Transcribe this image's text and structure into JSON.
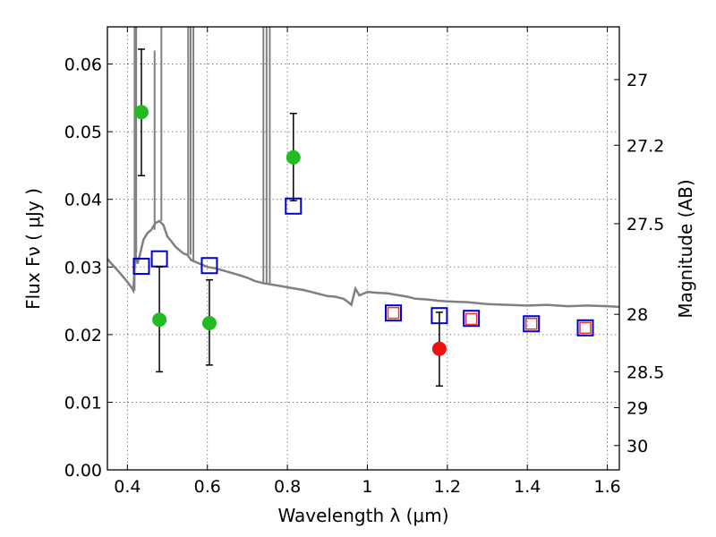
{
  "chart_data": {
    "type": "scatter",
    "title": "",
    "xlabel": "Wavelength  λ (μm)",
    "ylabel": "Flux  Fν  ( μJy )",
    "y2label": "Magnitude (AB)",
    "xlim": [
      0.35,
      1.63
    ],
    "ylim": [
      0.0,
      0.0655
    ],
    "x_ticks": [
      0.4,
      0.6,
      0.8,
      1.0,
      1.2,
      1.4,
      1.6
    ],
    "x_tick_labels": [
      "0.4",
      "0.6",
      "0.8",
      "1",
      "1.2",
      "1.4",
      "1.6"
    ],
    "y_ticks": [
      0.0,
      0.01,
      0.02,
      0.03,
      0.04,
      0.05,
      0.06
    ],
    "y_tick_labels": [
      "0.00",
      "0.01",
      "0.02",
      "0.03",
      "0.04",
      "0.05",
      "0.06"
    ],
    "y2_ticks": [
      {
        "label": "27",
        "flux": 0.0577
      },
      {
        "label": "27.2",
        "flux": 0.048
      },
      {
        "label": "27.5",
        "flux": 0.0364
      },
      {
        "label": "28",
        "flux": 0.023
      },
      {
        "label": "28.5",
        "flux": 0.0145
      },
      {
        "label": "29",
        "flux": 0.0092
      },
      {
        "label": "30",
        "flux": 0.0036
      }
    ],
    "grid": true,
    "series": [
      {
        "marker": "line",
        "color": "#808080",
        "points": [
          [
            0.35,
            0.0312
          ],
          [
            0.36,
            0.0305
          ],
          [
            0.38,
            0.0292
          ],
          [
            0.4,
            0.0278
          ],
          [
            0.41,
            0.027
          ],
          [
            0.415,
            0.0265
          ],
          [
            0.42,
            0.032
          ],
          [
            0.425,
            0.0305
          ],
          [
            0.43,
            0.0315
          ],
          [
            0.44,
            0.034
          ],
          [
            0.45,
            0.035
          ],
          [
            0.46,
            0.0355
          ],
          [
            0.47,
            0.0365
          ],
          [
            0.48,
            0.0368
          ],
          [
            0.49,
            0.0362
          ],
          [
            0.5,
            0.0345
          ],
          [
            0.51,
            0.0338
          ],
          [
            0.52,
            0.033
          ],
          [
            0.53,
            0.0325
          ],
          [
            0.54,
            0.032
          ],
          [
            0.55,
            0.0318
          ],
          [
            0.56,
            0.031
          ],
          [
            0.58,
            0.0305
          ],
          [
            0.6,
            0.03
          ],
          [
            0.62,
            0.0298
          ],
          [
            0.65,
            0.0293
          ],
          [
            0.68,
            0.0288
          ],
          [
            0.7,
            0.0284
          ],
          [
            0.72,
            0.0279
          ],
          [
            0.74,
            0.0276
          ],
          [
            0.76,
            0.0274
          ],
          [
            0.78,
            0.0272
          ],
          [
            0.8,
            0.027
          ],
          [
            0.82,
            0.0268
          ],
          [
            0.84,
            0.0266
          ],
          [
            0.86,
            0.0263
          ],
          [
            0.88,
            0.026
          ],
          [
            0.9,
            0.0257
          ],
          [
            0.92,
            0.0256
          ],
          [
            0.94,
            0.0253
          ],
          [
            0.95,
            0.0249
          ],
          [
            0.96,
            0.0244
          ],
          [
            0.97,
            0.0268
          ],
          [
            0.98,
            0.0258
          ],
          [
            1.0,
            0.0263
          ],
          [
            1.02,
            0.0262
          ],
          [
            1.05,
            0.0261
          ],
          [
            1.08,
            0.0258
          ],
          [
            1.1,
            0.0256
          ],
          [
            1.12,
            0.0253
          ],
          [
            1.15,
            0.0252
          ],
          [
            1.18,
            0.025
          ],
          [
            1.2,
            0.0249
          ],
          [
            1.25,
            0.0248
          ],
          [
            1.3,
            0.0245
          ],
          [
            1.35,
            0.0244
          ],
          [
            1.4,
            0.0243
          ],
          [
            1.45,
            0.0244
          ],
          [
            1.5,
            0.0242
          ],
          [
            1.55,
            0.0243
          ],
          [
            1.6,
            0.0242
          ],
          [
            1.63,
            0.0241
          ]
        ],
        "spikes": [
          {
            "x": 0.418,
            "top": 0.0655
          },
          {
            "x": 0.422,
            "top": 0.0655
          },
          {
            "x": 0.468,
            "top": 0.062
          },
          {
            "x": 0.485,
            "top": 0.0655
          },
          {
            "x": 0.552,
            "top": 0.0655
          },
          {
            "x": 0.558,
            "top": 0.0655
          },
          {
            "x": 0.565,
            "top": 0.0655
          },
          {
            "x": 0.74,
            "top": 0.0655
          },
          {
            "x": 0.748,
            "top": 0.0655
          },
          {
            "x": 0.756,
            "top": 0.0655
          }
        ]
      },
      {
        "marker": "blue-open-square",
        "color": "#0000cc",
        "points": [
          [
            0.435,
            0.0301
          ],
          [
            0.48,
            0.0312
          ],
          [
            0.605,
            0.0302
          ],
          [
            0.815,
            0.039
          ],
          [
            1.065,
            0.0232
          ],
          [
            1.18,
            0.0228
          ],
          [
            1.26,
            0.0224
          ],
          [
            1.41,
            0.0216
          ],
          [
            1.545,
            0.021
          ]
        ]
      },
      {
        "marker": "red-open-square",
        "color": "#ee3333",
        "points": [
          [
            1.065,
            0.0232
          ],
          [
            1.26,
            0.0223
          ],
          [
            1.41,
            0.0216
          ],
          [
            1.545,
            0.021
          ]
        ]
      },
      {
        "marker": "green-filled-circle",
        "color": "#22bb22",
        "points": [
          {
            "x": 0.435,
            "y": 0.0529,
            "err": [
              0.0435,
              0.0622
            ]
          },
          {
            "x": 0.48,
            "y": 0.0222,
            "err": [
              0.0145,
              0.03
            ]
          },
          {
            "x": 0.605,
            "y": 0.0217,
            "err": [
              0.0155,
              0.0281
            ]
          },
          {
            "x": 0.815,
            "y": 0.0462,
            "err": [
              0.0398,
              0.0527
            ]
          }
        ]
      },
      {
        "marker": "red-filled-circle",
        "color": "#ee1111",
        "points": [
          {
            "x": 1.18,
            "y": 0.0179,
            "err": [
              0.0124,
              0.0233
            ]
          }
        ]
      }
    ]
  }
}
